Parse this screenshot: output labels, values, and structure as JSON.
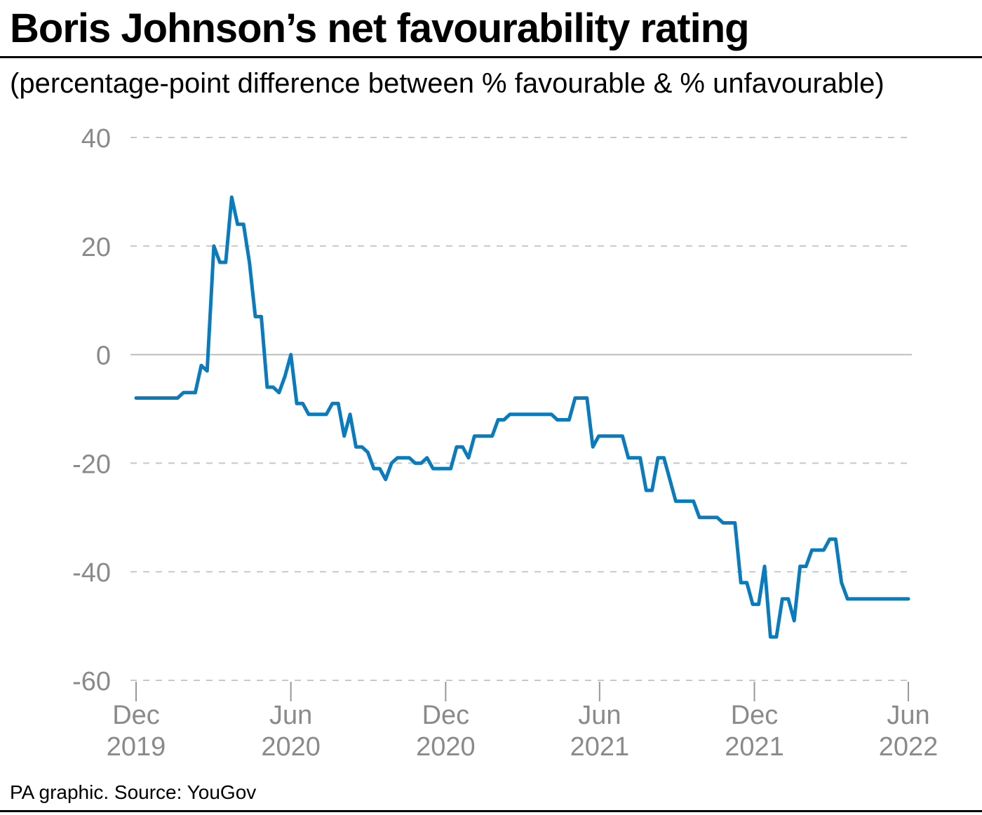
{
  "header": {
    "title": "Boris Johnson’s net favourability rating",
    "subtitle": "(percentage-point difference between % favourable & % unfavourable)"
  },
  "footer": {
    "source": "PA graphic. Source: YouGov"
  },
  "colors": {
    "line": "#0a7bbd",
    "grid": "#c8c8c8",
    "zero": "#bdbdbd",
    "tick_text": "#8a8a8a"
  },
  "chart_data": {
    "type": "line",
    "title": "Boris Johnson’s net favourability rating",
    "subtitle": "(percentage-point difference between % favourable & % unfavourable)",
    "xlabel": "",
    "ylabel": "",
    "ylim": [
      -60,
      40
    ],
    "xlim": [
      "2019-12-01",
      "2022-06-01"
    ],
    "grid": true,
    "y_ticks": [
      {
        "value": 40,
        "label": "40"
      },
      {
        "value": 20,
        "label": "20"
      },
      {
        "value": 0,
        "label": "0"
      },
      {
        "value": -20,
        "label": "-20"
      },
      {
        "value": -40,
        "label": "-40"
      },
      {
        "value": -60,
        "label": "-60"
      }
    ],
    "x_ticks": [
      {
        "date": "2019-12-01",
        "month": "Dec",
        "year": "2019"
      },
      {
        "date": "2020-06-01",
        "month": "Jun",
        "year": "2020"
      },
      {
        "date": "2020-12-01",
        "month": "Dec",
        "year": "2020"
      },
      {
        "date": "2021-06-01",
        "month": "Jun",
        "year": "2021"
      },
      {
        "date": "2021-12-01",
        "month": "Dec",
        "year": "2021"
      },
      {
        "date": "2022-06-01",
        "month": "Jun",
        "year": "2022"
      }
    ],
    "series": [
      {
        "values": [
          [
            "2019-12-01",
            -8
          ],
          [
            "2020-01-19",
            -8
          ],
          [
            "2020-01-26",
            -7
          ],
          [
            "2020-02-09",
            -7
          ],
          [
            "2020-02-16",
            -2
          ],
          [
            "2020-02-23",
            -3
          ],
          [
            "2020-03-02",
            20
          ],
          [
            "2020-03-09",
            17
          ],
          [
            "2020-03-16",
            17
          ],
          [
            "2020-03-23",
            29
          ],
          [
            "2020-03-30",
            24
          ],
          [
            "2020-04-06",
            24
          ],
          [
            "2020-04-13",
            17
          ],
          [
            "2020-04-20",
            7
          ],
          [
            "2020-04-27",
            7
          ],
          [
            "2020-05-04",
            -6
          ],
          [
            "2020-05-11",
            -6
          ],
          [
            "2020-05-18",
            -7
          ],
          [
            "2020-05-25",
            -4
          ],
          [
            "2020-06-01",
            0
          ],
          [
            "2020-06-08",
            -9
          ],
          [
            "2020-06-15",
            -9
          ],
          [
            "2020-06-22",
            -11
          ],
          [
            "2020-07-06",
            -11
          ],
          [
            "2020-07-13",
            -11
          ],
          [
            "2020-07-20",
            -9
          ],
          [
            "2020-07-27",
            -9
          ],
          [
            "2020-08-03",
            -15
          ],
          [
            "2020-08-10",
            -11
          ],
          [
            "2020-08-17",
            -17
          ],
          [
            "2020-08-24",
            -17
          ],
          [
            "2020-08-31",
            -18
          ],
          [
            "2020-09-07",
            -21
          ],
          [
            "2020-09-14",
            -21
          ],
          [
            "2020-09-21",
            -23
          ],
          [
            "2020-09-28",
            -20
          ],
          [
            "2020-10-05",
            -19
          ],
          [
            "2020-10-19",
            -19
          ],
          [
            "2020-10-26",
            -20
          ],
          [
            "2020-11-02",
            -20
          ],
          [
            "2020-11-09",
            -19
          ],
          [
            "2020-11-16",
            -21
          ],
          [
            "2020-12-07",
            -21
          ],
          [
            "2020-12-14",
            -17
          ],
          [
            "2020-12-21",
            -17
          ],
          [
            "2020-12-28",
            -19
          ],
          [
            "2021-01-04",
            -15
          ],
          [
            "2021-01-25",
            -15
          ],
          [
            "2021-02-01",
            -12
          ],
          [
            "2021-02-08",
            -12
          ],
          [
            "2021-02-15",
            -11
          ],
          [
            "2021-04-05",
            -11
          ],
          [
            "2021-04-12",
            -12
          ],
          [
            "2021-04-26",
            -12
          ],
          [
            "2021-05-03",
            -8
          ],
          [
            "2021-05-17",
            -8
          ],
          [
            "2021-05-24",
            -17
          ],
          [
            "2021-05-31",
            -15
          ],
          [
            "2021-06-28",
            -15
          ],
          [
            "2021-07-05",
            -19
          ],
          [
            "2021-07-19",
            -19
          ],
          [
            "2021-07-26",
            -25
          ],
          [
            "2021-08-02",
            -25
          ],
          [
            "2021-08-09",
            -19
          ],
          [
            "2021-08-16",
            -19
          ],
          [
            "2021-08-30",
            -27
          ],
          [
            "2021-09-20",
            -27
          ],
          [
            "2021-09-27",
            -30
          ],
          [
            "2021-10-18",
            -30
          ],
          [
            "2021-10-25",
            -31
          ],
          [
            "2021-11-08",
            -31
          ],
          [
            "2021-11-15",
            -42
          ],
          [
            "2021-11-22",
            -42
          ],
          [
            "2021-11-29",
            -46
          ],
          [
            "2021-12-06",
            -46
          ],
          [
            "2021-12-13",
            -39
          ],
          [
            "2021-12-20",
            -52
          ],
          [
            "2021-12-27",
            -52
          ],
          [
            "2022-01-03",
            -45
          ],
          [
            "2022-01-10",
            -45
          ],
          [
            "2022-01-17",
            -49
          ],
          [
            "2022-01-24",
            -39
          ],
          [
            "2022-01-31",
            -39
          ],
          [
            "2022-02-07",
            -36
          ],
          [
            "2022-02-21",
            -36
          ],
          [
            "2022-02-28",
            -34
          ],
          [
            "2022-03-07",
            -34
          ],
          [
            "2022-03-14",
            -42
          ],
          [
            "2022-03-21",
            -45
          ],
          [
            "2022-06-01",
            -45
          ]
        ]
      }
    ]
  }
}
